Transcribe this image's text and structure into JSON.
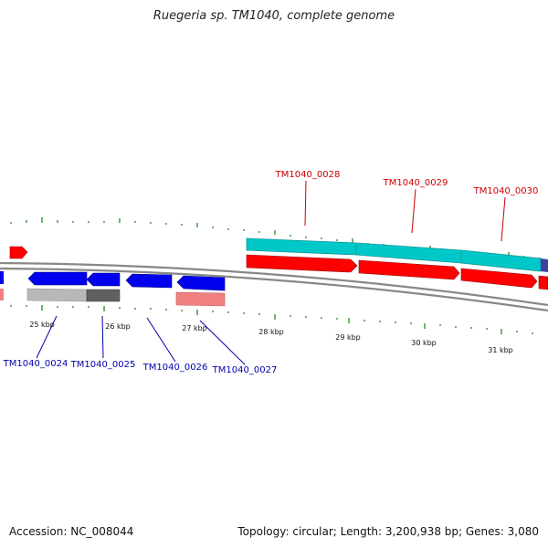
{
  "title": "Ruegeria sp. TM1040, complete genome",
  "accession": "Accession: NC_008044",
  "topology": "Topology: circular; Length: 3,200,938 bp; Genes: 3,080",
  "colors": {
    "forward_gene": "#ff0000",
    "reverse_gene": "#0000ee",
    "cyan_feature": "#00c8c8",
    "pink_feature": "#f08080",
    "grey_feature": "#b0b0b0",
    "dark_grey_feature": "#606060",
    "backbone": "#888888",
    "tick": "#228b22",
    "forward_label": "#cc0000",
    "reverse_label": "#0000aa"
  },
  "scale_labels": [
    "25 kbp",
    "26 kbp",
    "27 kbp",
    "28 kbp",
    "29 kbp",
    "30 kbp",
    "31 kbp"
  ],
  "gene_labels": {
    "forward": [
      "TM1040_0028",
      "TM1040_0029",
      "TM1040_0030"
    ],
    "reverse": [
      "TM1040_0024",
      "TM1040_0025",
      "TM1040_0026",
      "TM1040_0027"
    ]
  }
}
